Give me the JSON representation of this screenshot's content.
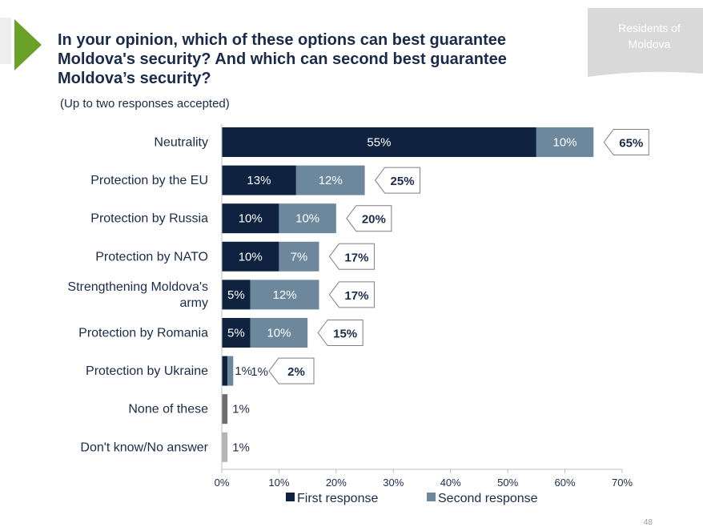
{
  "slide": {
    "title_lines": [
      "In your opinion, which of these options can best guarantee",
      "Moldova's security? And which can second best guarantee",
      "Moldova’s security?"
    ],
    "subtitle": "(Up to two responses accepted)",
    "badge_lines": [
      "Residents of",
      "Moldova"
    ],
    "page_number": "48"
  },
  "colors": {
    "first": "#0f2340",
    "second": "#6d879c",
    "none": "#6e6e6e",
    "dont_know": "#b5b5b5",
    "accent": "#6aa229",
    "title": "#1a2b4a",
    "badge": "#d9d9d9"
  },
  "chart_data": {
    "type": "bar",
    "orientation": "horizontal",
    "stacked": true,
    "title": "In your opinion, which of these options can best guarantee Moldova's security? And which can second best guarantee Moldova’s security?",
    "subtitle": "(Up to two responses accepted)",
    "categories": [
      "Neutrality",
      "Protection by the EU",
      "Protection by Russia",
      "Protection by NATO",
      "Strengthening Moldova's army",
      "Protection by Romania",
      "Protection by Ukraine",
      "None of these",
      "Don't know/No answer"
    ],
    "category_lines": [
      [
        "Neutrality"
      ],
      [
        "Protection by the EU"
      ],
      [
        "Protection by Russia"
      ],
      [
        "Protection by NATO"
      ],
      [
        "Strengthening Moldova's",
        "army"
      ],
      [
        "Protection by Romania"
      ],
      [
        "Protection by Ukraine"
      ],
      [
        "None of these"
      ],
      [
        "Don't know/No answer"
      ]
    ],
    "series": [
      {
        "name": "First response",
        "values": [
          55,
          13,
          10,
          10,
          5,
          5,
          1,
          null,
          null
        ],
        "labels": [
          "55%",
          "13%",
          "10%",
          "10%",
          "5%",
          "5%",
          "1%",
          "",
          ""
        ]
      },
      {
        "name": "Second response",
        "values": [
          10,
          12,
          10,
          7,
          12,
          10,
          1,
          null,
          null
        ],
        "labels": [
          "10%",
          "12%",
          "10%",
          "7%",
          "12%",
          "10%",
          "1%",
          "",
          ""
        ]
      }
    ],
    "single_values": [
      null,
      null,
      null,
      null,
      null,
      null,
      null,
      1,
      1
    ],
    "single_labels": [
      "",
      "",
      "",
      "",
      "",
      "",
      "",
      "1%",
      "1%"
    ],
    "totals": [
      "65%",
      "25%",
      "20%",
      "17%",
      "17%",
      "15%",
      "2%",
      "",
      ""
    ],
    "total_values": [
      65,
      25,
      20,
      17,
      17,
      15,
      2,
      null,
      null
    ],
    "xlim": [
      0,
      70
    ],
    "xticks": [
      0,
      10,
      20,
      30,
      40,
      50,
      60,
      70
    ],
    "xtick_labels": [
      "0%",
      "10%",
      "20%",
      "30%",
      "40%",
      "50%",
      "60%",
      "70%"
    ],
    "legend": [
      "First response",
      "Second response"
    ],
    "legend_position": "bottom",
    "grid": false
  }
}
